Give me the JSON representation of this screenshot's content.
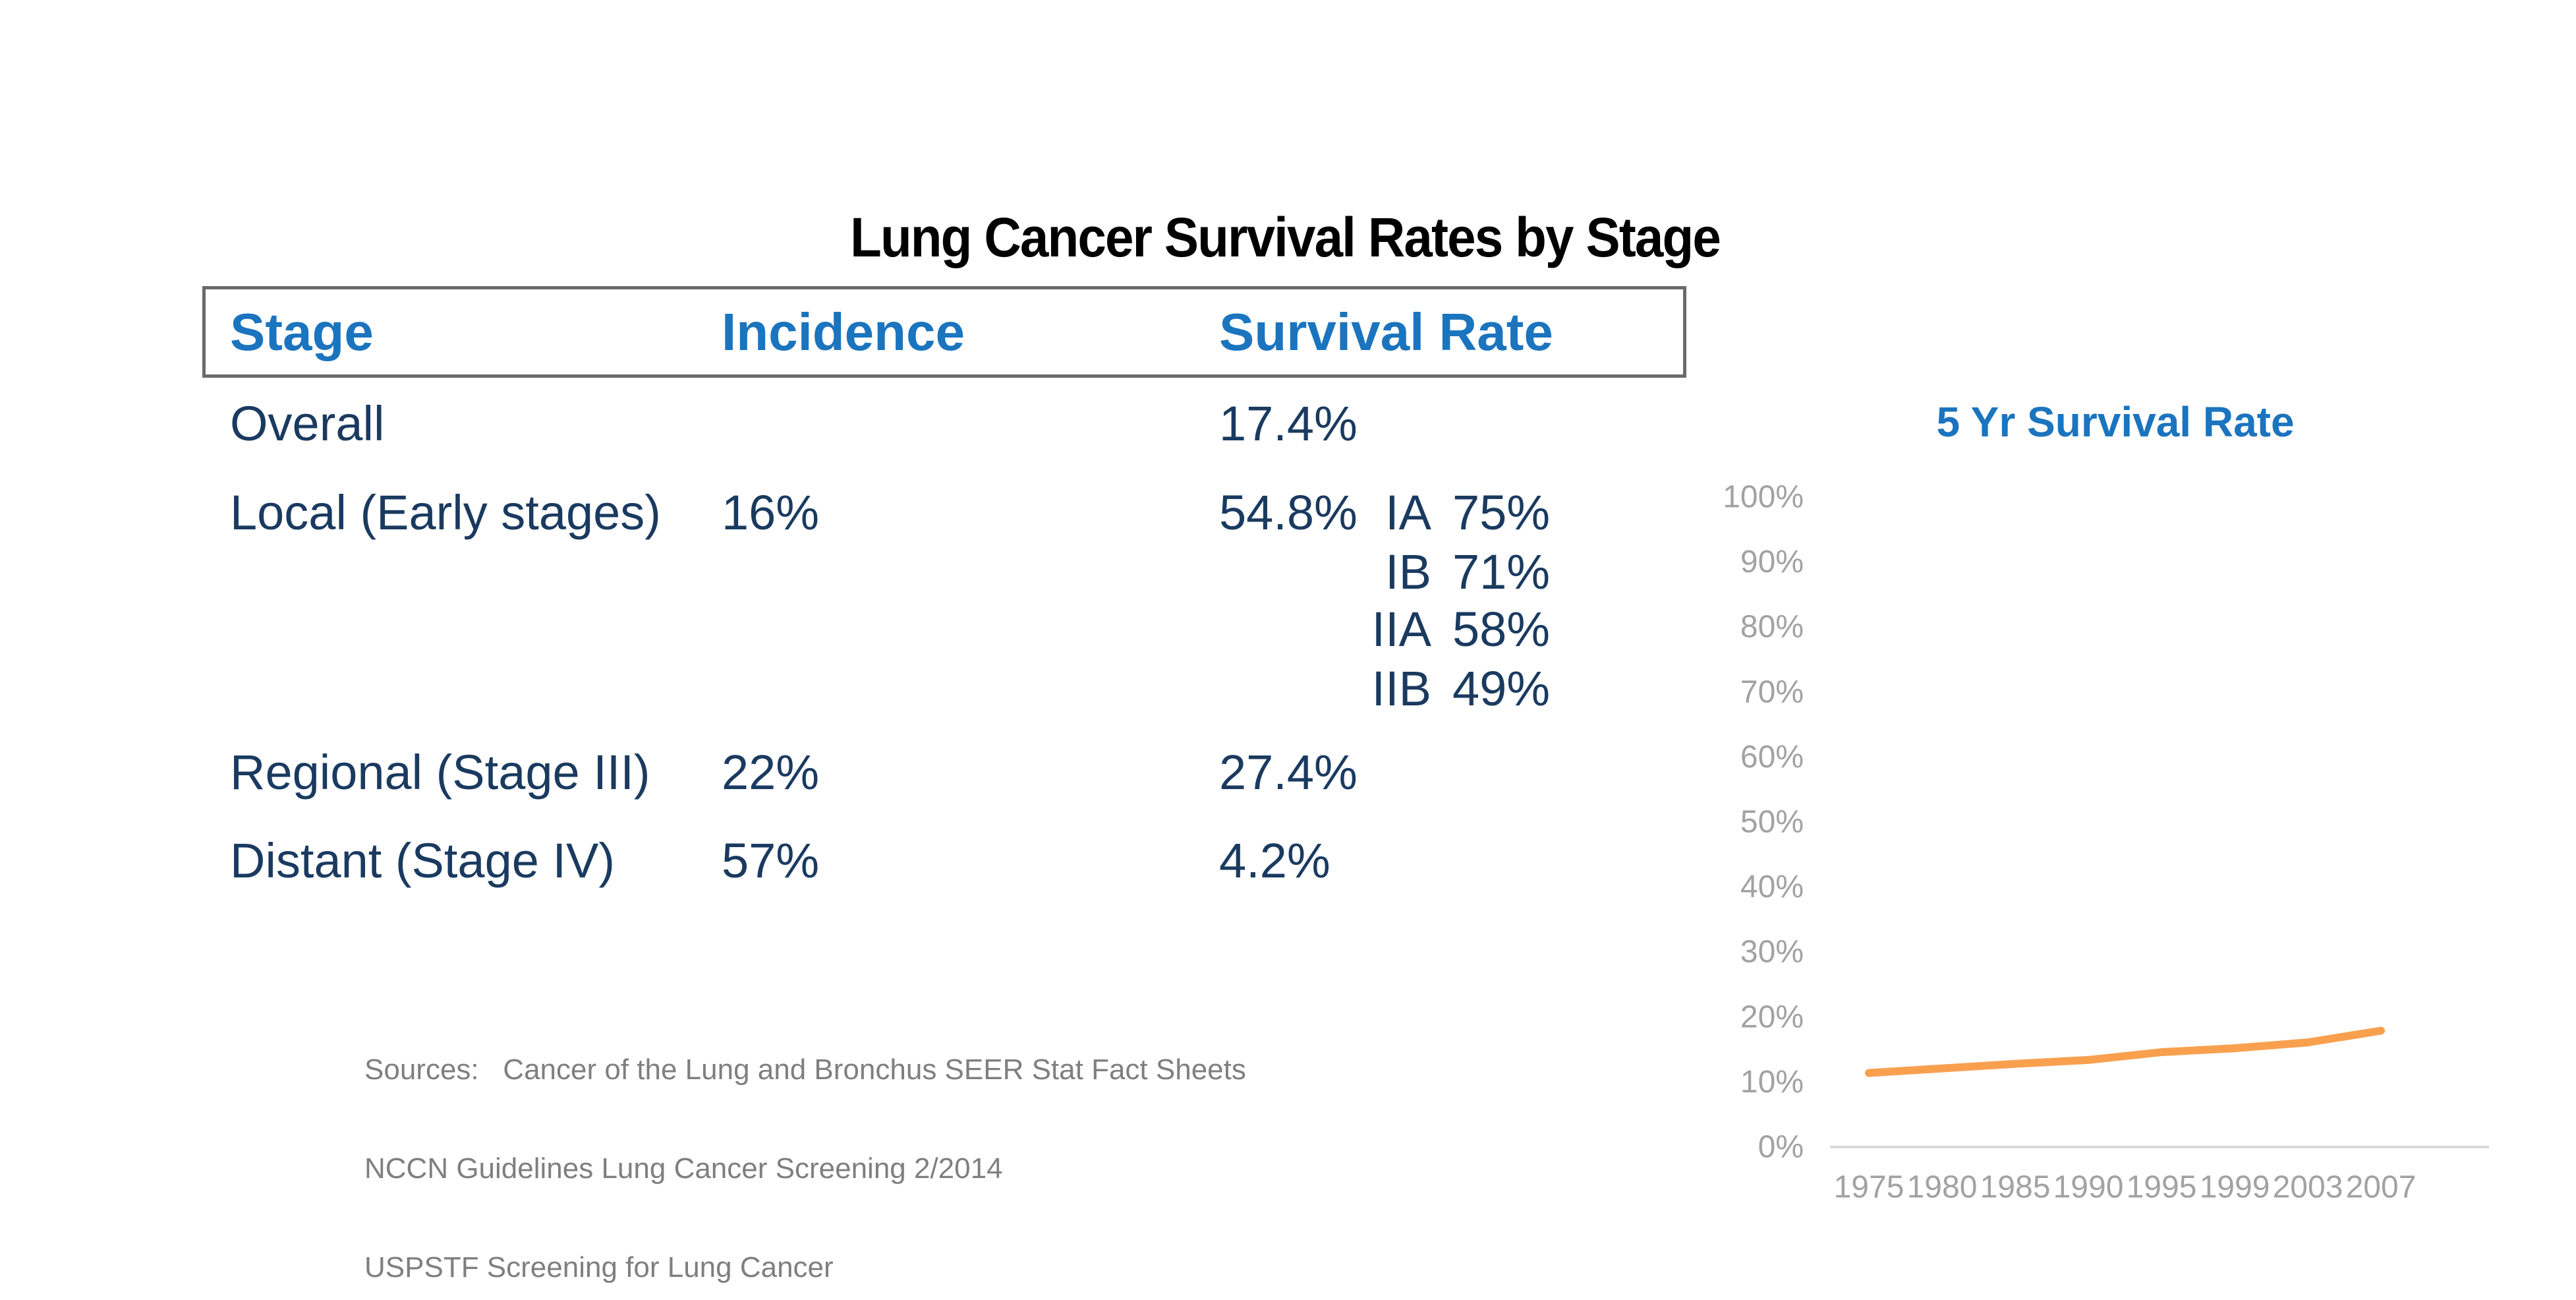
{
  "title": "Lung Cancer Survival Rates by Stage",
  "table": {
    "headers": [
      "Stage",
      "Incidence",
      "Survival Rate"
    ],
    "rows": [
      {
        "stage": "Overall",
        "incidence": "",
        "survival": "17.4%"
      },
      {
        "stage": "Local (Early stages)",
        "incidence": "16%",
        "survival": "54.8%"
      },
      {
        "stage": "Regional (Stage III)",
        "incidence": "22%",
        "survival": "27.4%"
      },
      {
        "stage": "Distant (Stage IV)",
        "incidence": "57%",
        "survival": "4.2%"
      }
    ],
    "substages": [
      {
        "label": "IA",
        "value": "75%"
      },
      {
        "label": "IB",
        "value": "71%"
      },
      {
        "label": "IIA",
        "value": "58%"
      },
      {
        "label": "IIB",
        "value": "49%"
      }
    ]
  },
  "sources": {
    "lines": [
      "Sources:   Cancer of the Lung and Bronchus SEER Stat Fact Sheets",
      "NCCN Guidelines Lung Cancer Screening 2/2014",
      "USPSTF Screening for Lung Cancer"
    ]
  },
  "chart_data": {
    "type": "line",
    "title": "5 Yr Survival Rate",
    "x": [
      1975,
      1980,
      1985,
      1990,
      1995,
      1999,
      2003,
      2007
    ],
    "x_tick_labels": [
      "1975",
      "1980",
      "1985",
      "1990",
      "1995",
      "1999",
      "2003",
      "2007"
    ],
    "series": [
      {
        "name": "5 Yr Survival Rate",
        "values": [
          11.4,
          12.1,
          12.8,
          13.4,
          14.6,
          15.2,
          16.1,
          17.9
        ]
      }
    ],
    "y_tick_labels": [
      "0%",
      "10%",
      "20%",
      "30%",
      "40%",
      "50%",
      "60%",
      "70%",
      "80%",
      "90%",
      "100%"
    ],
    "ylim": [
      0,
      100
    ],
    "grid": false,
    "legend": "none",
    "xlabel": "",
    "ylabel": "",
    "line_color": "#F9A04F",
    "axis_text_color": "#A2A2A2",
    "axis_line_color": "#D9D9D9"
  },
  "colors": {
    "accent_blue": "#1B74BE",
    "body_navy": "#1A3A60",
    "title_black": "#000000",
    "source_gray": "#7F7F7F",
    "axis_gray": "#A2A2A2",
    "axis_line": "#D9D9D9",
    "line_orange": "#F9A04F",
    "header_border": "#6A6A6A"
  }
}
